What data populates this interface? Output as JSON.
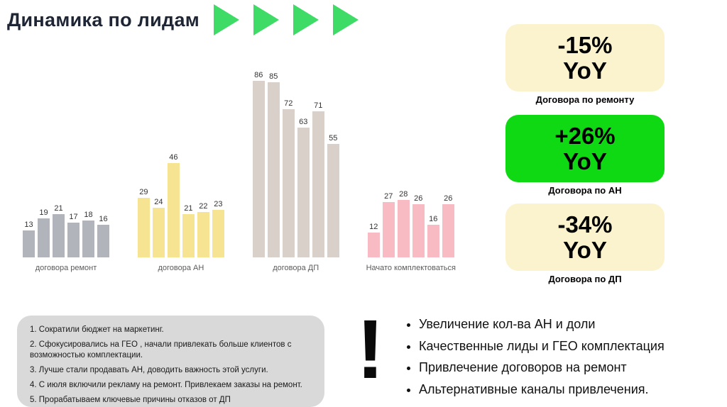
{
  "title": "Динамика по лидам",
  "decor": {
    "arrow_count": 4,
    "arrow_color": "#3edb66"
  },
  "chart_data": {
    "type": "bar",
    "title": "Динамика по лидам",
    "value_labels": true,
    "ylim": [
      0,
      90
    ],
    "legend_position": "none",
    "groups": [
      {
        "label": "договора ремонт",
        "color": "#b1b4bb",
        "values": [
          13,
          19,
          21,
          17,
          18,
          16
        ]
      },
      {
        "label": "договора АН",
        "color": "#f6e492",
        "values": [
          29,
          24,
          46,
          21,
          22,
          23
        ]
      },
      {
        "label": "договора ДП",
        "color": "#d9d0c9",
        "values": [
          86,
          85,
          72,
          63,
          71,
          55
        ]
      },
      {
        "label": "Начато комплектоваться",
        "color": "#f8bac3",
        "values": [
          12,
          27,
          28,
          26,
          16,
          26
        ]
      }
    ]
  },
  "kpi_cards": [
    {
      "value": "-15%",
      "unit": "YoY",
      "label": "Договора по ремонту",
      "bg": "#fbf3cd",
      "highlight": false
    },
    {
      "value": "+26%",
      "unit": "YoY",
      "label": "Договора по АН",
      "bg": "#0fd912",
      "highlight": true
    },
    {
      "value": "-34%",
      "unit": "YoY",
      "label": "Договора по ДП",
      "bg": "#fbf3cd",
      "highlight": false
    }
  ],
  "notes": {
    "items": [
      "1. Сократили бюджет на маркетинг.",
      "2. Сфокусировались на ГЕО , начали привлекать больше клиентов с возможностью комплектации.",
      "3. Лучше стали продавать АН, доводить важность этой услуги.",
      "4. С июля включили рекламу на ремонт. Привлекаем заказы на ремонт.",
      "5. Прорабатываем ключевые причины отказов от ДП"
    ]
  },
  "highlights": {
    "exclamation": "!",
    "items": [
      "Увеличение кол-ва АН и доли",
      "Качественные лиды и ГЕО комплектация",
      "Привлечение договоров на ремонт",
      "Альтернативные каналы привлечения."
    ]
  }
}
